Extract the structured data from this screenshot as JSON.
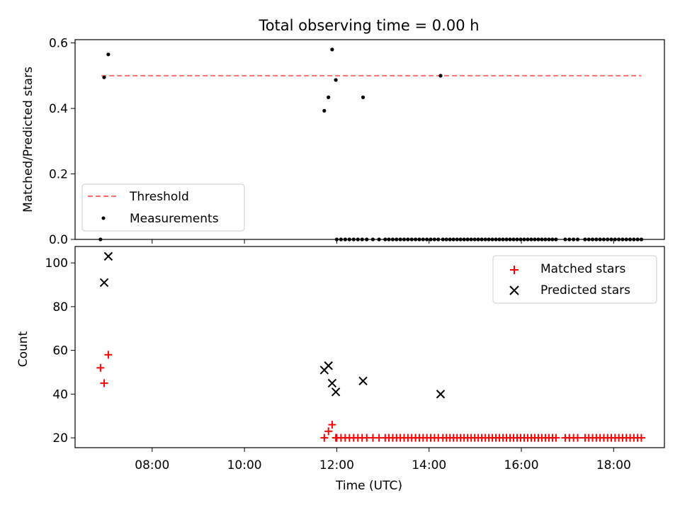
{
  "chart_data": [
    {
      "type": "scatter",
      "title": "Total observing time = 0.00 h",
      "ylabel": "Matched/Predicted stars",
      "xlabel": "",
      "xlim": [
        6.33,
        19.1
      ],
      "ylim": [
        0.0,
        0.61
      ],
      "yticks": [
        0.0,
        0.2,
        0.4,
        0.6
      ],
      "ytick_labels": [
        "0.0",
        "0.2",
        "0.4",
        "0.6"
      ],
      "xticks": [
        8,
        10,
        12,
        14,
        16,
        18
      ],
      "legend": {
        "position": "lower-left",
        "entries": [
          "Threshold",
          "Measurements"
        ]
      },
      "threshold": {
        "name": "Threshold",
        "value": 0.5,
        "x_range": [
          6.9,
          18.6
        ],
        "color": "#ff6e6e",
        "style": "dashed"
      },
      "measurements": {
        "name": "Measurements",
        "color": "#000000",
        "points": [
          [
            6.88,
            0.0
          ],
          [
            6.96,
            0.495
          ],
          [
            7.05,
            0.565
          ],
          [
            11.73,
            0.393
          ],
          [
            11.82,
            0.434
          ],
          [
            11.9,
            0.58
          ],
          [
            11.98,
            0.487
          ],
          [
            12.57,
            0.434
          ],
          [
            14.25,
            0.5
          ]
        ],
        "zero_run_x": [
          [
            12.0,
            12.55
          ],
          [
            12.65,
            13.05
          ],
          [
            13.13,
            14.2
          ],
          [
            14.3,
            16.75
          ],
          [
            16.95,
            17.22
          ],
          [
            17.38,
            18.6
          ]
        ],
        "zero_run_count": [
          7,
          4,
          14,
          33,
          4,
          16
        ]
      }
    },
    {
      "type": "scatter",
      "title": "",
      "ylabel": "Count",
      "xlabel": "Time (UTC)",
      "xlim": [
        6.33,
        19.1
      ],
      "ylim": [
        15.5,
        107.5
      ],
      "yticks": [
        20,
        40,
        60,
        80,
        100
      ],
      "ytick_labels": [
        "20",
        "40",
        "60",
        "80",
        "100"
      ],
      "xticks": [
        8,
        10,
        12,
        14,
        16,
        18
      ],
      "xtick_labels": [
        "08:00",
        "10:00",
        "12:00",
        "14:00",
        "16:00",
        "18:00"
      ],
      "legend": {
        "position": "upper-right",
        "entries": [
          "Matched stars",
          "Predicted stars"
        ]
      },
      "matched": {
        "name": "Matched stars",
        "color": "#ff0000",
        "points": [
          [
            6.88,
            52
          ],
          [
            6.96,
            45
          ],
          [
            7.05,
            58
          ],
          [
            11.73,
            20
          ],
          [
            11.82,
            23
          ],
          [
            11.9,
            26
          ],
          [
            11.98,
            20
          ]
        ],
        "constant_run_value": 20,
        "constant_run_x": [
          [
            12.0,
            12.55
          ],
          [
            12.65,
            13.05
          ],
          [
            13.13,
            14.2
          ],
          [
            14.3,
            16.75
          ],
          [
            16.95,
            17.22
          ],
          [
            17.38,
            18.6
          ]
        ],
        "constant_run_count": [
          7,
          4,
          14,
          33,
          4,
          16
        ]
      },
      "predicted": {
        "name": "Predicted stars",
        "color": "#000000",
        "points": [
          [
            6.96,
            91
          ],
          [
            7.05,
            103
          ],
          [
            11.73,
            51
          ],
          [
            11.82,
            53
          ],
          [
            11.9,
            45
          ],
          [
            11.98,
            41
          ],
          [
            12.57,
            46
          ],
          [
            14.25,
            40
          ]
        ]
      }
    }
  ]
}
